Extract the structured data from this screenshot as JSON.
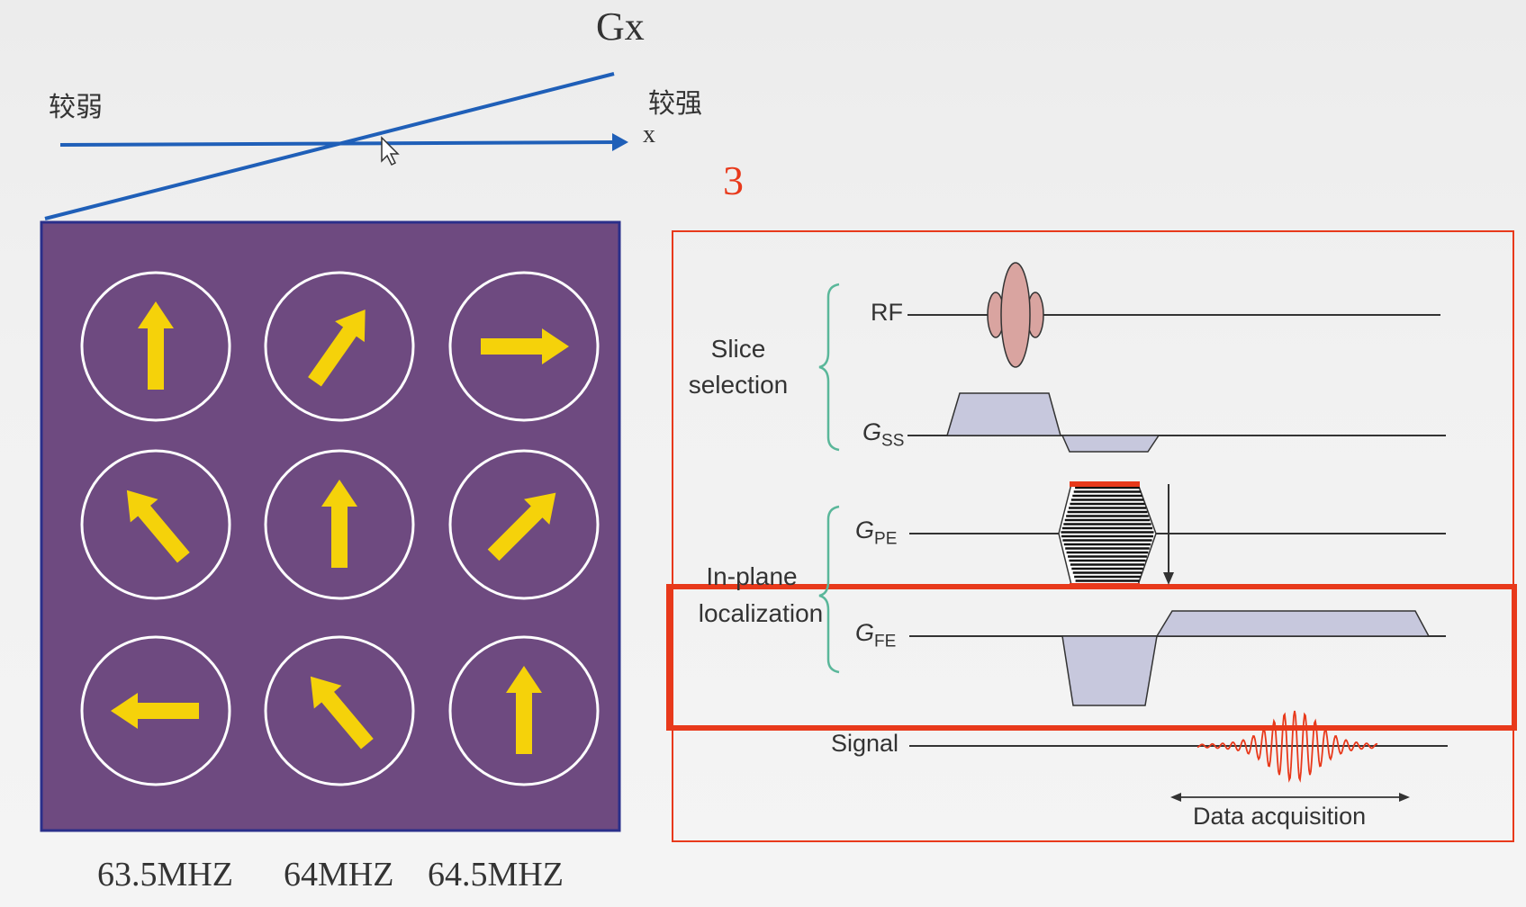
{
  "gradient": {
    "title": "Gx",
    "weak_label": "较弱",
    "strong_label": "较强",
    "axis_label": "x"
  },
  "slide_number": "3",
  "frequencies": [
    "63.5MHZ",
    "64MHZ",
    "64.5MHZ"
  ],
  "spins": {
    "background": "#6e4a80",
    "arrow_color": "#f5d20a",
    "angles_deg": [
      0,
      35,
      90,
      -40,
      0,
      45,
      -90,
      -40,
      0
    ]
  },
  "sequence": {
    "group_slice": "Slice\nselection",
    "group_inplane": "In-plane",
    "group_localization": "localization",
    "rows": {
      "rf": "RF",
      "gss_main": "G",
      "gss_sub": "SS",
      "gpe_main": "G",
      "gpe_sub": "PE",
      "gfe_main": "G",
      "gfe_sub": "FE",
      "signal": "Signal"
    },
    "data_acquisition": "Data acquisition",
    "frame_color": "#e8391b",
    "pulse_fill": "#c7c8dd",
    "rf_fill": "#d9a4a0"
  }
}
